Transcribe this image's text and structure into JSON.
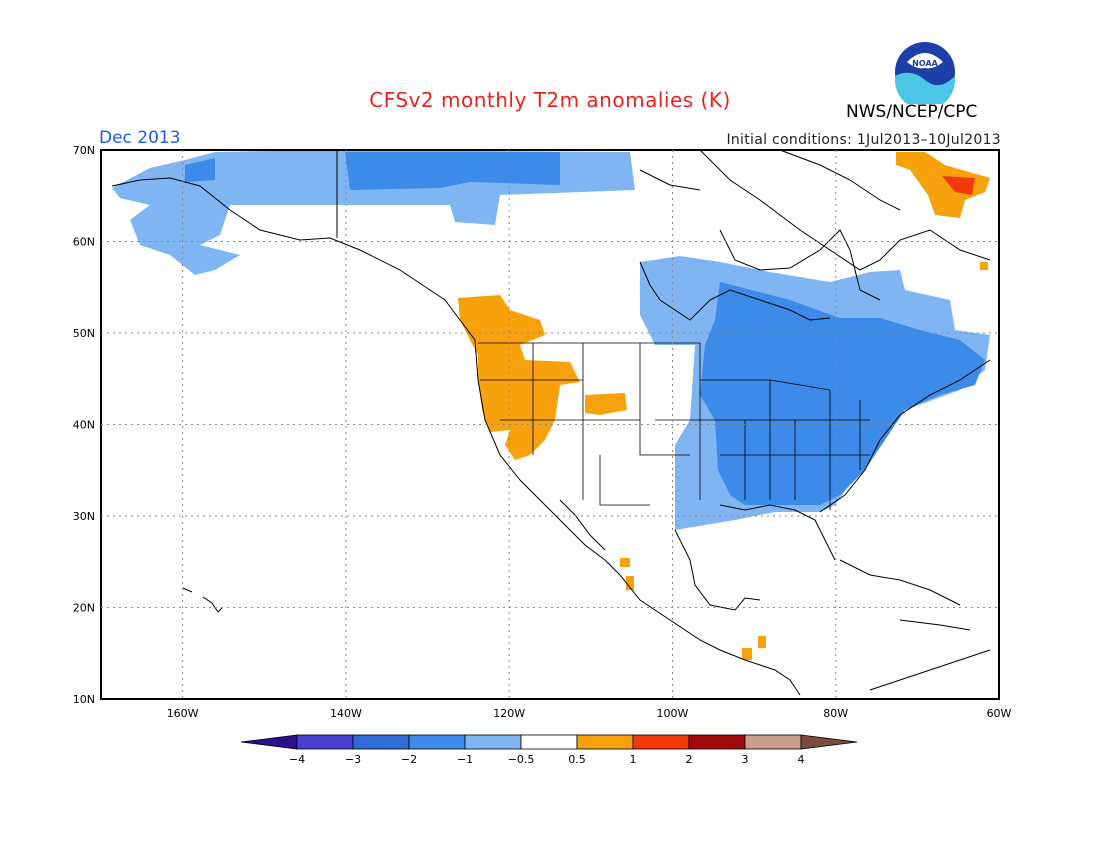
{
  "title": "CFSv2 monthly T2m anomalies (K)",
  "month": "Dec 2013",
  "initial_conditions": "Initial conditions: 1Jul2013–10Jul2013",
  "agency": "NWS/NCEP/CPC",
  "logo_text": "NOAA",
  "map": {
    "lat_labels": [
      "70N",
      "60N",
      "50N",
      "40N",
      "30N",
      "20N",
      "10N"
    ],
    "lon_labels": [
      "160W",
      "140W",
      "120W",
      "100W",
      "80W",
      "60W"
    ],
    "lon_range": [
      -170,
      -60
    ],
    "lat_range": [
      10,
      70
    ]
  },
  "colorbar": {
    "labels": [
      "−4",
      "−3",
      "−2",
      "−1",
      "−0.5",
      "0.5",
      "1",
      "2",
      "3",
      "4"
    ],
    "colors": [
      "#2a0f8f",
      "#4a40d0",
      "#2f6ad6",
      "#3d8be8",
      "#7fb5f3",
      "#ffffff",
      "#f7a10c",
      "#f33a0c",
      "#a00a0a",
      "#c9a08b",
      "#7a4a3a"
    ]
  },
  "anomaly_colors": {
    "cold_moderate": "#3d8be8",
    "cold_weak": "#7fb5f3",
    "warm_weak": "#f7a10c",
    "warm_moderate": "#f33a0c"
  }
}
